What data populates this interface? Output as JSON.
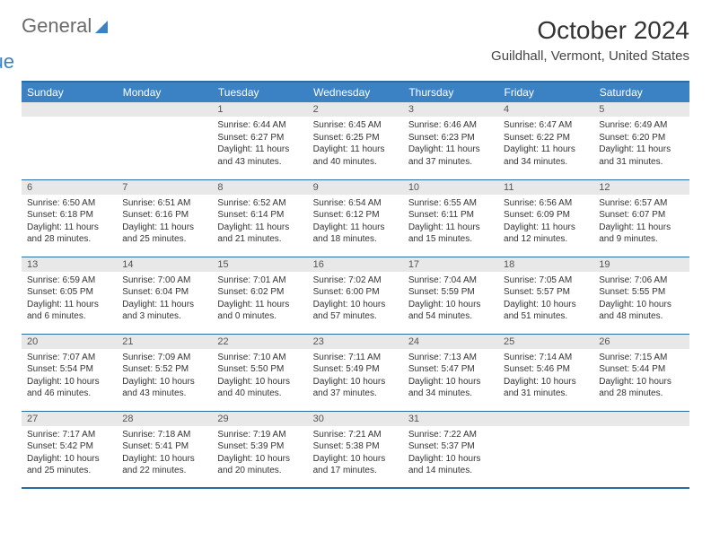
{
  "brand": {
    "word1": "General",
    "word2": "Blue"
  },
  "title": "October 2024",
  "location": "Guildhall, Vermont, United States",
  "colors": {
    "header_bg": "#3b82c4",
    "header_text": "#ffffff",
    "border": "#2d6ca2",
    "daynum_bg": "#e8e8e8",
    "text": "#333333",
    "background": "#ffffff"
  },
  "typography": {
    "title_fontsize": 28,
    "location_fontsize": 15,
    "header_fontsize": 12,
    "daynum_fontsize": 11,
    "body_fontsize": 10
  },
  "day_headers": [
    "Sunday",
    "Monday",
    "Tuesday",
    "Wednesday",
    "Thursday",
    "Friday",
    "Saturday"
  ],
  "weeks": [
    [
      null,
      null,
      {
        "n": "1",
        "sr": "6:44 AM",
        "ss": "6:27 PM",
        "dl": "11 hours and 43 minutes."
      },
      {
        "n": "2",
        "sr": "6:45 AM",
        "ss": "6:25 PM",
        "dl": "11 hours and 40 minutes."
      },
      {
        "n": "3",
        "sr": "6:46 AM",
        "ss": "6:23 PM",
        "dl": "11 hours and 37 minutes."
      },
      {
        "n": "4",
        "sr": "6:47 AM",
        "ss": "6:22 PM",
        "dl": "11 hours and 34 minutes."
      },
      {
        "n": "5",
        "sr": "6:49 AM",
        "ss": "6:20 PM",
        "dl": "11 hours and 31 minutes."
      }
    ],
    [
      {
        "n": "6",
        "sr": "6:50 AM",
        "ss": "6:18 PM",
        "dl": "11 hours and 28 minutes."
      },
      {
        "n": "7",
        "sr": "6:51 AM",
        "ss": "6:16 PM",
        "dl": "11 hours and 25 minutes."
      },
      {
        "n": "8",
        "sr": "6:52 AM",
        "ss": "6:14 PM",
        "dl": "11 hours and 21 minutes."
      },
      {
        "n": "9",
        "sr": "6:54 AM",
        "ss": "6:12 PM",
        "dl": "11 hours and 18 minutes."
      },
      {
        "n": "10",
        "sr": "6:55 AM",
        "ss": "6:11 PM",
        "dl": "11 hours and 15 minutes."
      },
      {
        "n": "11",
        "sr": "6:56 AM",
        "ss": "6:09 PM",
        "dl": "11 hours and 12 minutes."
      },
      {
        "n": "12",
        "sr": "6:57 AM",
        "ss": "6:07 PM",
        "dl": "11 hours and 9 minutes."
      }
    ],
    [
      {
        "n": "13",
        "sr": "6:59 AM",
        "ss": "6:05 PM",
        "dl": "11 hours and 6 minutes."
      },
      {
        "n": "14",
        "sr": "7:00 AM",
        "ss": "6:04 PM",
        "dl": "11 hours and 3 minutes."
      },
      {
        "n": "15",
        "sr": "7:01 AM",
        "ss": "6:02 PM",
        "dl": "11 hours and 0 minutes."
      },
      {
        "n": "16",
        "sr": "7:02 AM",
        "ss": "6:00 PM",
        "dl": "10 hours and 57 minutes."
      },
      {
        "n": "17",
        "sr": "7:04 AM",
        "ss": "5:59 PM",
        "dl": "10 hours and 54 minutes."
      },
      {
        "n": "18",
        "sr": "7:05 AM",
        "ss": "5:57 PM",
        "dl": "10 hours and 51 minutes."
      },
      {
        "n": "19",
        "sr": "7:06 AM",
        "ss": "5:55 PM",
        "dl": "10 hours and 48 minutes."
      }
    ],
    [
      {
        "n": "20",
        "sr": "7:07 AM",
        "ss": "5:54 PM",
        "dl": "10 hours and 46 minutes."
      },
      {
        "n": "21",
        "sr": "7:09 AM",
        "ss": "5:52 PM",
        "dl": "10 hours and 43 minutes."
      },
      {
        "n": "22",
        "sr": "7:10 AM",
        "ss": "5:50 PM",
        "dl": "10 hours and 40 minutes."
      },
      {
        "n": "23",
        "sr": "7:11 AM",
        "ss": "5:49 PM",
        "dl": "10 hours and 37 minutes."
      },
      {
        "n": "24",
        "sr": "7:13 AM",
        "ss": "5:47 PM",
        "dl": "10 hours and 34 minutes."
      },
      {
        "n": "25",
        "sr": "7:14 AM",
        "ss": "5:46 PM",
        "dl": "10 hours and 31 minutes."
      },
      {
        "n": "26",
        "sr": "7:15 AM",
        "ss": "5:44 PM",
        "dl": "10 hours and 28 minutes."
      }
    ],
    [
      {
        "n": "27",
        "sr": "7:17 AM",
        "ss": "5:42 PM",
        "dl": "10 hours and 25 minutes."
      },
      {
        "n": "28",
        "sr": "7:18 AM",
        "ss": "5:41 PM",
        "dl": "10 hours and 22 minutes."
      },
      {
        "n": "29",
        "sr": "7:19 AM",
        "ss": "5:39 PM",
        "dl": "10 hours and 20 minutes."
      },
      {
        "n": "30",
        "sr": "7:21 AM",
        "ss": "5:38 PM",
        "dl": "10 hours and 17 minutes."
      },
      {
        "n": "31",
        "sr": "7:22 AM",
        "ss": "5:37 PM",
        "dl": "10 hours and 14 minutes."
      },
      null,
      null
    ]
  ],
  "labels": {
    "sunrise": "Sunrise:",
    "sunset": "Sunset:",
    "daylight": "Daylight:"
  }
}
